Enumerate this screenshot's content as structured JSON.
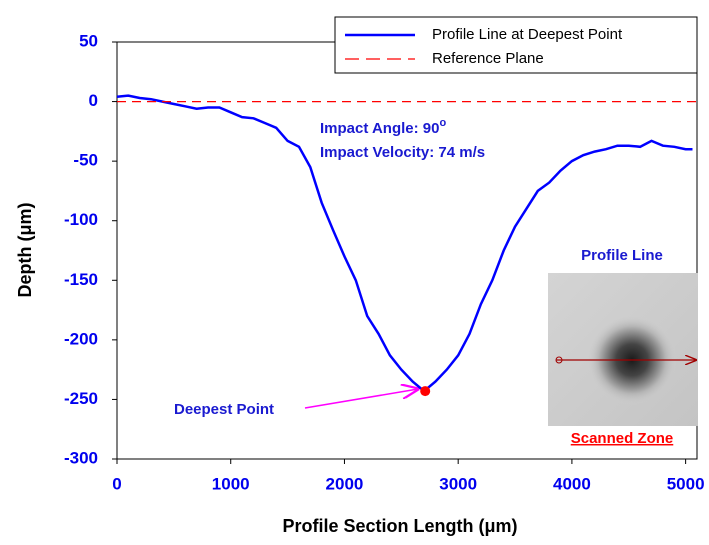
{
  "chart_data": {
    "type": "line",
    "x_label": "Profile Section Length (μm)",
    "y_label": "Depth (μm)",
    "xlim": [
      0,
      5100
    ],
    "ylim": [
      -300,
      50
    ],
    "xticks": [
      0,
      1000,
      2000,
      3000,
      4000,
      5000
    ],
    "yticks": [
      -300,
      -250,
      -200,
      -150,
      -100,
      -50,
      0,
      50
    ],
    "series": [
      {
        "name": "Profile Line at Deepest Point",
        "color": "#0000ff",
        "dashed": false,
        "x": [
          0,
          100,
          200,
          300,
          400,
          500,
          600,
          700,
          800,
          900,
          1000,
          1100,
          1200,
          1300,
          1400,
          1500,
          1600,
          1700,
          1750,
          1800,
          1900,
          2000,
          2100,
          2200,
          2300,
          2400,
          2500,
          2600,
          2700,
          2800,
          2900,
          3000,
          3100,
          3200,
          3300,
          3400,
          3500,
          3600,
          3700,
          3800,
          3900,
          4000,
          4100,
          4200,
          4300,
          4400,
          4500,
          4600,
          4700,
          4800,
          4900,
          5000,
          5060
        ],
        "values": [
          4,
          5,
          3,
          2,
          0,
          -2,
          -4,
          -6,
          -5,
          -5,
          -9,
          -13,
          -14,
          -18,
          -22,
          -33,
          -38,
          -55,
          -70,
          -85,
          -108,
          -130,
          -150,
          -180,
          -195,
          -213,
          -225,
          -235,
          -243,
          -235,
          -225,
          -213,
          -195,
          -170,
          -150,
          -125,
          -105,
          -90,
          -75,
          -68,
          -58,
          -50,
          -45,
          -42,
          -40,
          -37,
          -37,
          -38,
          -33,
          -37,
          -38,
          -40,
          -40
        ]
      },
      {
        "name": "Reference Plane",
        "color": "#ff0000",
        "dashed": true,
        "x": [
          0,
          5100
        ],
        "values": [
          0,
          0
        ]
      }
    ],
    "deepest_point": {
      "label": "Deepest Point",
      "x": 2710,
      "y": -243,
      "color": "#ff0000"
    },
    "annotations": [
      {
        "text": "Impact Angle: 90",
        "superscript": "o"
      },
      {
        "text": "Impact Velocity: 74 m/s"
      }
    ],
    "inset": {
      "title": "Profile Line",
      "caption": "Scanned Zone"
    }
  }
}
